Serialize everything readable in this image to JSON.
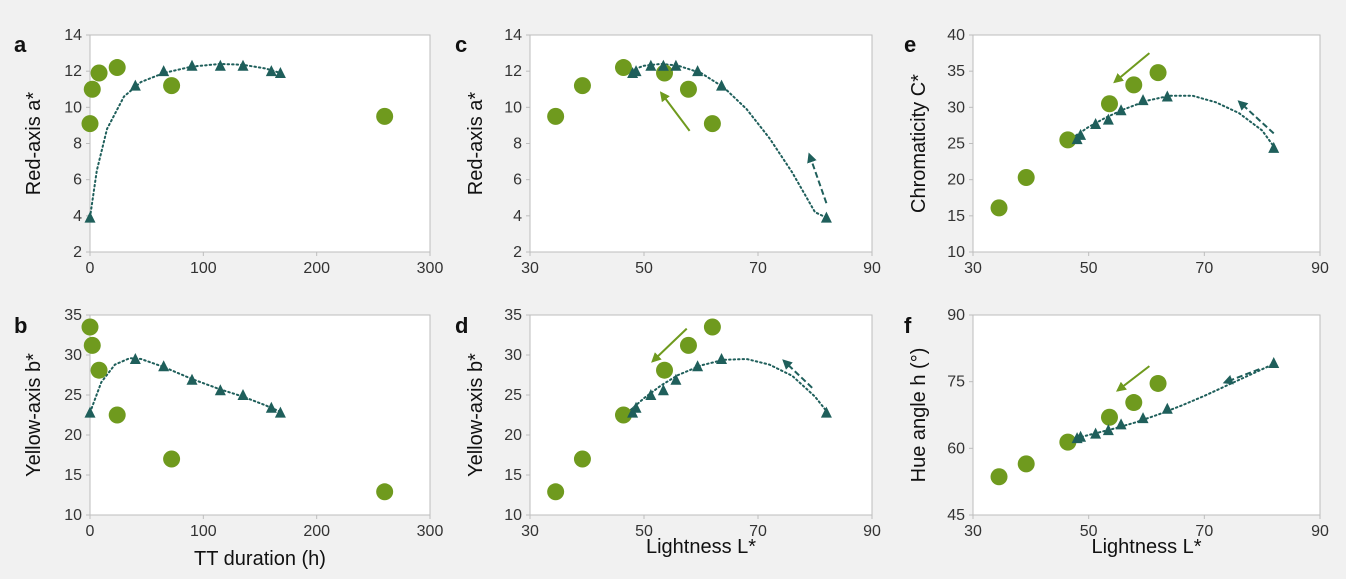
{
  "colors": {
    "circle": "#6f9a1e",
    "triangle": "#1f5f5b",
    "fit": "#1f5f5b",
    "arrow_circle": "#6f9a1e",
    "arrow_triangle": "#1f5f5b"
  },
  "chart_data": [
    {
      "type": "scatter",
      "panel": "a",
      "xlabel": "",
      "ylabel": "Red-axis a*",
      "xlim": [
        0,
        300
      ],
      "ylim": [
        2,
        14
      ],
      "xticks": [
        0,
        100,
        200,
        300
      ],
      "yticks": [
        2,
        4,
        6,
        8,
        10,
        12,
        14
      ],
      "series": [
        {
          "marker": "circle",
          "points": [
            [
              0,
              9.1
            ],
            [
              2,
              11.0
            ],
            [
              8,
              11.9
            ],
            [
              24,
              12.2
            ],
            [
              72,
              11.2
            ],
            [
              260,
              9.5
            ]
          ]
        },
        {
          "marker": "triangle",
          "points": [
            [
              0,
              3.9
            ],
            [
              40,
              11.2
            ],
            [
              65,
              12.0
            ],
            [
              90,
              12.3
            ],
            [
              115,
              12.3
            ],
            [
              135,
              12.3
            ],
            [
              160,
              12.0
            ],
            [
              168,
              11.9
            ]
          ]
        }
      ],
      "trend": [
        [
          0,
          3.9
        ],
        [
          6,
          6.5
        ],
        [
          15,
          8.8
        ],
        [
          30,
          10.6
        ],
        [
          45,
          11.4
        ],
        [
          65,
          11.9
        ],
        [
          90,
          12.25
        ],
        [
          115,
          12.4
        ],
        [
          135,
          12.35
        ],
        [
          155,
          12.15
        ],
        [
          168,
          11.9
        ]
      ],
      "arrows": []
    },
    {
      "type": "scatter",
      "panel": "b",
      "xlabel": "TT duration (h)",
      "ylabel": "Yellow-axis b*",
      "xlim": [
        0,
        300
      ],
      "ylim": [
        10,
        35
      ],
      "xticks": [
        0,
        100,
        200,
        300
      ],
      "yticks": [
        10,
        15,
        20,
        25,
        30,
        35
      ],
      "series": [
        {
          "marker": "circle",
          "points": [
            [
              0,
              33.5
            ],
            [
              2,
              31.2
            ],
            [
              8,
              28.1
            ],
            [
              24,
              22.5
            ],
            [
              72,
              17.0
            ],
            [
              260,
              12.9
            ]
          ]
        },
        {
          "marker": "triangle",
          "points": [
            [
              0,
              22.8
            ],
            [
              40,
              29.5
            ],
            [
              65,
              28.6
            ],
            [
              90,
              26.9
            ],
            [
              115,
              25.6
            ],
            [
              135,
              25.0
            ],
            [
              160,
              23.4
            ],
            [
              168,
              22.8
            ]
          ]
        }
      ],
      "trend": [
        [
          0,
          22.8
        ],
        [
          10,
          26.6
        ],
        [
          22,
          28.8
        ],
        [
          35,
          29.6
        ],
        [
          45,
          29.5
        ],
        [
          65,
          28.5
        ],
        [
          90,
          27.0
        ],
        [
          115,
          25.7
        ],
        [
          135,
          24.8
        ],
        [
          155,
          23.7
        ],
        [
          168,
          22.9
        ]
      ],
      "arrows": []
    },
    {
      "type": "scatter",
      "panel": "c",
      "xlabel": "",
      "ylabel": "Red-axis a*",
      "xlim": [
        30,
        90
      ],
      "ylim": [
        2,
        14
      ],
      "xticks": [
        30,
        50,
        70,
        90
      ],
      "yticks": [
        2,
        4,
        6,
        8,
        10,
        12,
        14
      ],
      "series": [
        {
          "marker": "circle",
          "points": [
            [
              34.5,
              9.5
            ],
            [
              39.2,
              11.2
            ],
            [
              46.4,
              12.2
            ],
            [
              53.6,
              11.9
            ],
            [
              57.8,
              11.0
            ],
            [
              62.0,
              9.1
            ]
          ]
        },
        {
          "marker": "triangle",
          "points": [
            [
              48.0,
              11.9
            ],
            [
              48.6,
              12.0
            ],
            [
              51.2,
              12.3
            ],
            [
              53.4,
              12.3
            ],
            [
              55.6,
              12.3
            ],
            [
              59.4,
              12.0
            ],
            [
              63.6,
              11.2
            ],
            [
              82.0,
              3.9
            ]
          ]
        }
      ],
      "trend": [
        [
          47,
          11.95
        ],
        [
          50,
          12.3
        ],
        [
          53,
          12.4
        ],
        [
          56,
          12.3
        ],
        [
          60,
          11.9
        ],
        [
          64,
          11.1
        ],
        [
          68,
          9.9
        ],
        [
          72,
          8.3
        ],
        [
          76,
          6.4
        ],
        [
          80,
          4.2
        ],
        [
          82,
          3.9
        ]
      ],
      "arrows": [
        {
          "color": "circle",
          "dashed": false,
          "from": [
            58.0,
            8.7
          ],
          "to": [
            53.0,
            10.8
          ]
        },
        {
          "color": "triangle",
          "dashed": true,
          "from": [
            82.0,
            4.7
          ],
          "to": [
            79.0,
            7.4
          ]
        }
      ]
    },
    {
      "type": "scatter",
      "panel": "d",
      "xlabel": "Lightness L*",
      "ylabel": "Yellow-axis b*",
      "xlim": [
        30,
        90
      ],
      "ylim": [
        10,
        35
      ],
      "xticks": [
        30,
        50,
        70,
        90
      ],
      "yticks": [
        10,
        15,
        20,
        25,
        30,
        35
      ],
      "series": [
        {
          "marker": "circle",
          "points": [
            [
              34.5,
              12.9
            ],
            [
              39.2,
              17.0
            ],
            [
              46.4,
              22.5
            ],
            [
              53.6,
              28.1
            ],
            [
              57.8,
              31.2
            ],
            [
              62.0,
              33.5
            ]
          ]
        },
        {
          "marker": "triangle",
          "points": [
            [
              48.0,
              22.8
            ],
            [
              48.6,
              23.4
            ],
            [
              51.2,
              25.0
            ],
            [
              53.4,
              25.6
            ],
            [
              55.6,
              26.9
            ],
            [
              59.4,
              28.6
            ],
            [
              63.6,
              29.5
            ],
            [
              82.0,
              22.8
            ]
          ]
        }
      ],
      "trend": [
        [
          46.5,
          22.4
        ],
        [
          50,
          24.6
        ],
        [
          53,
          26.2
        ],
        [
          56,
          27.5
        ],
        [
          60,
          28.7
        ],
        [
          64,
          29.4
        ],
        [
          68,
          29.5
        ],
        [
          72,
          28.8
        ],
        [
          76,
          27.4
        ],
        [
          80,
          24.8
        ],
        [
          82,
          23.0
        ]
      ],
      "arrows": [
        {
          "color": "circle",
          "dashed": false,
          "from": [
            57.5,
            33.3
          ],
          "to": [
            51.5,
            29.2
          ]
        },
        {
          "color": "triangle",
          "dashed": true,
          "from": [
            79.5,
            25.9
          ],
          "to": [
            74.5,
            29.3
          ]
        }
      ]
    },
    {
      "type": "scatter",
      "panel": "e",
      "xlabel": "",
      "ylabel": "Chromaticity C*",
      "xlim": [
        30,
        90
      ],
      "ylim": [
        10,
        40
      ],
      "xticks": [
        30,
        50,
        70,
        90
      ],
      "yticks": [
        10,
        15,
        20,
        25,
        30,
        35,
        40
      ],
      "series": [
        {
          "marker": "circle",
          "points": [
            [
              34.5,
              16.1
            ],
            [
              39.2,
              20.3
            ],
            [
              46.4,
              25.5
            ],
            [
              53.6,
              30.5
            ],
            [
              57.8,
              33.1
            ],
            [
              62.0,
              34.8
            ]
          ]
        },
        {
          "marker": "triangle",
          "points": [
            [
              48.0,
              25.6
            ],
            [
              48.6,
              26.2
            ],
            [
              51.2,
              27.7
            ],
            [
              53.4,
              28.3
            ],
            [
              55.6,
              29.6
            ],
            [
              59.4,
              31.0
            ],
            [
              63.6,
              31.5
            ],
            [
              82.0,
              24.4
            ]
          ]
        }
      ],
      "trend": [
        [
          46.5,
          25.4
        ],
        [
          50,
          27.3
        ],
        [
          53,
          28.6
        ],
        [
          56,
          29.7
        ],
        [
          60,
          30.9
        ],
        [
          64,
          31.6
        ],
        [
          68,
          31.6
        ],
        [
          72,
          30.7
        ],
        [
          76,
          29.2
        ],
        [
          80,
          26.8
        ],
        [
          82,
          24.6
        ]
      ],
      "arrows": [
        {
          "color": "circle",
          "dashed": false,
          "from": [
            60.5,
            37.5
          ],
          "to": [
            54.5,
            33.5
          ]
        },
        {
          "color": "triangle",
          "dashed": true,
          "from": [
            82.0,
            26.4
          ],
          "to": [
            76.0,
            30.8
          ]
        }
      ]
    },
    {
      "type": "scatter",
      "panel": "f",
      "xlabel": "Lightness L*",
      "ylabel": "Hue angle h (°)",
      "xlim": [
        30,
        90
      ],
      "ylim": [
        45,
        90
      ],
      "xticks": [
        30,
        50,
        70,
        90
      ],
      "yticks": [
        45,
        60,
        75,
        90
      ],
      "series": [
        {
          "marker": "circle",
          "points": [
            [
              34.5,
              53.6
            ],
            [
              39.2,
              56.5
            ],
            [
              46.4,
              61.4
            ],
            [
              53.6,
              67.0
            ],
            [
              57.8,
              70.3
            ],
            [
              62.0,
              74.6
            ]
          ]
        },
        {
          "marker": "triangle",
          "points": [
            [
              48.0,
              62.3
            ],
            [
              48.6,
              62.6
            ],
            [
              51.2,
              63.3
            ],
            [
              53.4,
              64.1
            ],
            [
              55.6,
              65.4
            ],
            [
              59.4,
              66.8
            ],
            [
              63.6,
              68.9
            ],
            [
              82.0,
              79.2
            ]
          ]
        }
      ],
      "trend": [
        [
          46.5,
          61.8
        ],
        [
          50,
          63.0
        ],
        [
          54,
          64.3
        ],
        [
          58,
          65.8
        ],
        [
          62,
          67.6
        ],
        [
          66,
          69.6
        ],
        [
          70,
          71.8
        ],
        [
          74,
          74.2
        ],
        [
          78,
          76.6
        ],
        [
          82,
          79.0
        ]
      ],
      "arrows": [
        {
          "color": "circle",
          "dashed": false,
          "from": [
            60.5,
            78.5
          ],
          "to": [
            55.0,
            73.0
          ]
        },
        {
          "color": "triangle",
          "dashed": true,
          "from": [
            79.5,
            77.8
          ],
          "to": [
            73.5,
            74.8
          ]
        }
      ]
    }
  ]
}
